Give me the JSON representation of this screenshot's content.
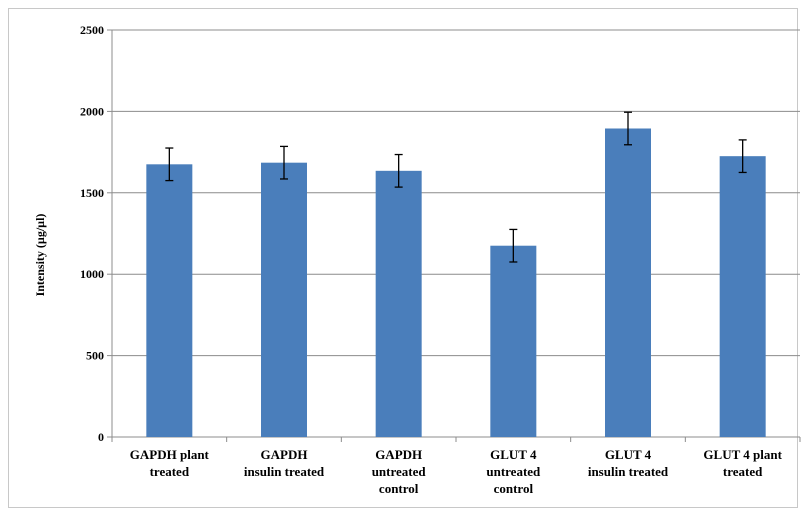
{
  "chart_data": {
    "type": "bar",
    "title": "",
    "xlabel": "",
    "ylabel": "Intensity (µg/µl)",
    "ylim": [
      0,
      2500
    ],
    "yticks": [
      0,
      500,
      1000,
      1500,
      2000,
      2500
    ],
    "grid": true,
    "legend": "none",
    "bar_color": "#4a7ebb",
    "categories": [
      [
        "GAPDH plant",
        "treated"
      ],
      [
        "GAPDH",
        "insulin treated"
      ],
      [
        "GAPDH",
        "untreated",
        "control"
      ],
      [
        "GLUT 4",
        "untreated",
        "control"
      ],
      [
        "GLUT 4",
        "insulin treated"
      ],
      [
        "GLUT 4 plant",
        "treated"
      ]
    ],
    "values": [
      1675,
      1685,
      1635,
      1175,
      1895,
      1725
    ],
    "error": [
      100,
      100,
      100,
      100,
      100,
      100
    ]
  }
}
